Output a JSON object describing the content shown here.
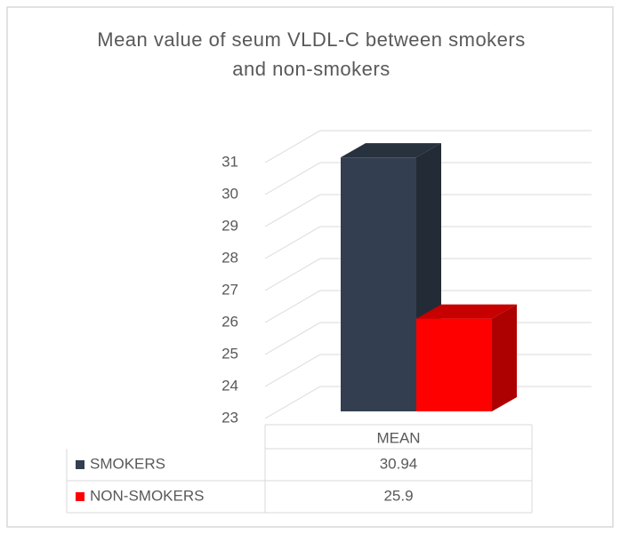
{
  "chart_data": {
    "type": "bar3d",
    "title": "Mean value of seum VLDL-C between smokers and non-smokers",
    "categories": [
      "MEAN"
    ],
    "series": [
      {
        "name": "SMOKERS",
        "color": "#333f50",
        "values": [
          30.94
        ]
      },
      {
        "name": "NON-SMOKERS",
        "color": "#ff0000",
        "values": [
          25.9
        ]
      }
    ],
    "ylim": [
      23,
      31
    ],
    "yticks": [
      23,
      24,
      25,
      26,
      27,
      28,
      29,
      30,
      31
    ],
    "grid": true,
    "data_table": true
  }
}
